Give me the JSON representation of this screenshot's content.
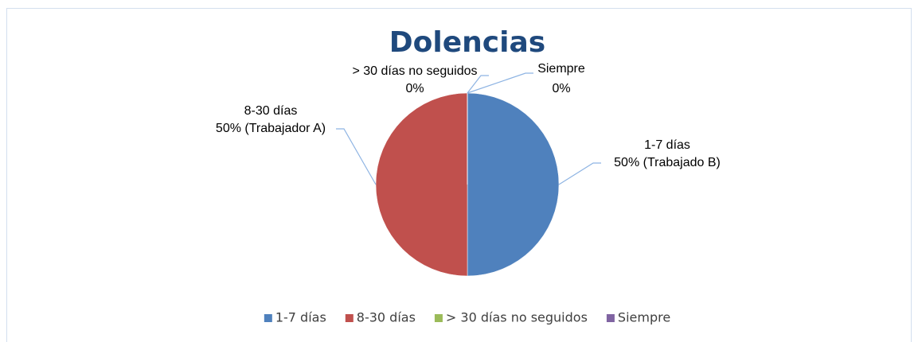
{
  "chart_data": {
    "type": "pie",
    "title": "Dolencias",
    "categories": [
      "1-7 días",
      "8-30 días",
      "> 30 días no seguidos",
      "Siempre"
    ],
    "values": [
      50,
      50,
      0,
      0
    ],
    "value_labels": [
      "50% (Trabajado B)",
      "50% (Trabajador A)",
      "0%",
      "0%"
    ],
    "colors": [
      "#4f81bd",
      "#c0504d",
      "#9bbb59",
      "#8064a2"
    ],
    "legend": "bottom"
  }
}
